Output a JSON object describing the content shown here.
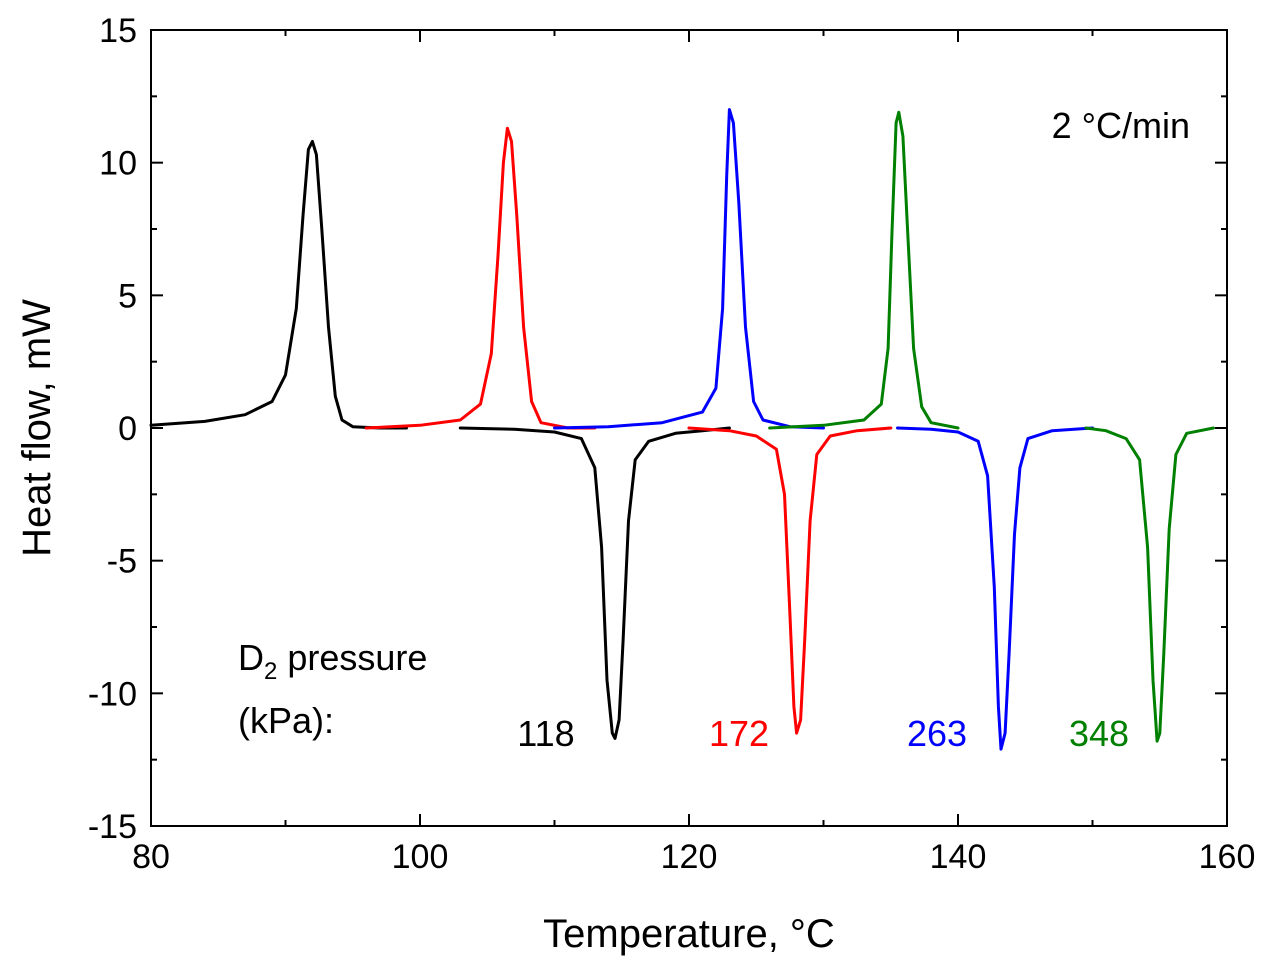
{
  "chart_data": {
    "type": "line",
    "xlabel": "Temperature, °C",
    "ylabel": "Heat flow, mW",
    "xlim": [
      80,
      160
    ],
    "ylim": [
      -15,
      15
    ],
    "x_major_ticks": [
      80,
      100,
      120,
      140,
      160
    ],
    "x_tick_labels": [
      "80",
      "100",
      "120",
      "140",
      "160"
    ],
    "y_major_ticks": [
      -15,
      -10,
      -5,
      0,
      5,
      10,
      15
    ],
    "y_tick_labels": [
      "-15",
      "-10",
      "-5",
      "0",
      "5",
      "10",
      "15"
    ],
    "rate_annotation": "2 °C/min",
    "legend_title_line1_main": "D",
    "legend_title_line1_sub": "2",
    "legend_title_line1_rest": " pressure",
    "legend_title_line2": "(kPa):",
    "series": [
      {
        "name": "118",
        "color": "#000000",
        "segments": [
          [
            [
              80,
              0.1
            ],
            [
              84,
              0.25
            ],
            [
              87,
              0.5
            ],
            [
              89,
              1.0
            ],
            [
              90,
              2.0
            ],
            [
              90.8,
              4.5
            ],
            [
              91.3,
              8.0
            ],
            [
              91.7,
              10.5
            ],
            [
              92.0,
              10.8
            ],
            [
              92.3,
              10.3
            ],
            [
              92.7,
              7.5
            ],
            [
              93.2,
              3.8
            ],
            [
              93.7,
              1.2
            ],
            [
              94.2,
              0.3
            ],
            [
              95,
              0.05
            ],
            [
              97,
              0.0
            ],
            [
              99,
              0.0
            ]
          ],
          [
            [
              103,
              0.0
            ],
            [
              107,
              -0.05
            ],
            [
              110,
              -0.15
            ],
            [
              112,
              -0.4
            ],
            [
              113,
              -1.5
            ],
            [
              113.5,
              -4.5
            ],
            [
              113.9,
              -9.5
            ],
            [
              114.3,
              -11.5
            ],
            [
              114.5,
              -11.7
            ],
            [
              114.8,
              -11.0
            ],
            [
              115.1,
              -8.0
            ],
            [
              115.5,
              -3.5
            ],
            [
              116,
              -1.2
            ],
            [
              117,
              -0.5
            ],
            [
              119,
              -0.2
            ],
            [
              121,
              -0.1
            ],
            [
              123,
              0.0
            ]
          ]
        ]
      },
      {
        "name": "172",
        "color": "#ff0000",
        "segments": [
          [
            [
              96,
              0.0
            ],
            [
              100,
              0.1
            ],
            [
              103,
              0.3
            ],
            [
              104.5,
              0.9
            ],
            [
              105.3,
              2.8
            ],
            [
              105.8,
              6.5
            ],
            [
              106.2,
              10.0
            ],
            [
              106.5,
              11.3
            ],
            [
              106.8,
              10.8
            ],
            [
              107.2,
              8.0
            ],
            [
              107.7,
              3.8
            ],
            [
              108.3,
              1.0
            ],
            [
              109,
              0.2
            ],
            [
              111,
              0.0
            ],
            [
              113,
              0.0
            ]
          ],
          [
            [
              120,
              0.0
            ],
            [
              123,
              -0.1
            ],
            [
              125,
              -0.3
            ],
            [
              126.5,
              -0.8
            ],
            [
              127.1,
              -2.5
            ],
            [
              127.5,
              -7.0
            ],
            [
              127.8,
              -10.5
            ],
            [
              128.0,
              -11.5
            ],
            [
              128.3,
              -11.0
            ],
            [
              128.6,
              -8.0
            ],
            [
              129,
              -3.5
            ],
            [
              129.5,
              -1.0
            ],
            [
              130.5,
              -0.3
            ],
            [
              132.5,
              -0.1
            ],
            [
              135,
              0.0
            ]
          ]
        ]
      },
      {
        "name": "263",
        "color": "#0000ff",
        "segments": [
          [
            [
              110,
              0.0
            ],
            [
              114,
              0.05
            ],
            [
              118,
              0.2
            ],
            [
              121,
              0.6
            ],
            [
              122,
              1.5
            ],
            [
              122.5,
              4.5
            ],
            [
              122.8,
              9.5
            ],
            [
              123.0,
              12.0
            ],
            [
              123.3,
              11.5
            ],
            [
              123.7,
              8.5
            ],
            [
              124.2,
              3.8
            ],
            [
              124.8,
              1.0
            ],
            [
              125.5,
              0.3
            ],
            [
              127.5,
              0.05
            ],
            [
              130,
              0.0
            ]
          ],
          [
            [
              135.5,
              0.0
            ],
            [
              138,
              -0.05
            ],
            [
              140,
              -0.15
            ],
            [
              141.5,
              -0.5
            ],
            [
              142.2,
              -1.8
            ],
            [
              142.7,
              -6.0
            ],
            [
              143.0,
              -10.5
            ],
            [
              143.2,
              -12.1
            ],
            [
              143.5,
              -11.5
            ],
            [
              143.8,
              -8.5
            ],
            [
              144.2,
              -4.0
            ],
            [
              144.6,
              -1.5
            ],
            [
              145.2,
              -0.4
            ],
            [
              147,
              -0.1
            ],
            [
              150,
              0.0
            ]
          ]
        ]
      },
      {
        "name": "348",
        "color": "#008000",
        "segments": [
          [
            [
              126,
              0.0
            ],
            [
              130,
              0.1
            ],
            [
              133,
              0.3
            ],
            [
              134.3,
              0.9
            ],
            [
              134.8,
              3.0
            ],
            [
              135.1,
              7.5
            ],
            [
              135.4,
              11.5
            ],
            [
              135.6,
              11.9
            ],
            [
              135.9,
              11.0
            ],
            [
              136.3,
              7.0
            ],
            [
              136.7,
              3.0
            ],
            [
              137.3,
              0.8
            ],
            [
              138,
              0.2
            ],
            [
              140,
              0.0
            ]
          ],
          [
            [
              149.5,
              0.0
            ],
            [
              151,
              -0.1
            ],
            [
              152.5,
              -0.4
            ],
            [
              153.5,
              -1.2
            ],
            [
              154.1,
              -4.5
            ],
            [
              154.5,
              -9.5
            ],
            [
              154.8,
              -11.8
            ],
            [
              155.0,
              -11.5
            ],
            [
              155.3,
              -8.5
            ],
            [
              155.7,
              -3.8
            ],
            [
              156.2,
              -1.0
            ],
            [
              157,
              -0.2
            ],
            [
              159,
              0.0
            ]
          ]
        ]
      }
    ]
  }
}
